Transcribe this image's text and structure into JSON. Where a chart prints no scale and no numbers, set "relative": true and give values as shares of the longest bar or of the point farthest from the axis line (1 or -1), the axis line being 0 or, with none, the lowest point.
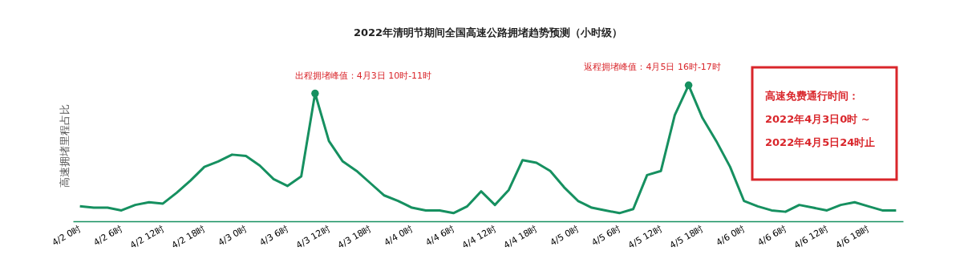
{
  "chart_data": {
    "type": "line",
    "title": "2022年清明节期间全国高速公路拥堵趋势预测（小时级）",
    "ylabel": "高速拥堵里程占比",
    "relative": true,
    "grid": false,
    "categories": [
      "4/2 0时",
      null,
      null,
      "4/2 6时",
      null,
      null,
      "4/2 12时",
      null,
      null,
      "4/2 18时",
      null,
      null,
      "4/3 0时",
      null,
      null,
      "4/3 6时",
      null,
      null,
      "4/3 12时",
      null,
      null,
      "4/3 18时",
      null,
      null,
      "4/4 0时",
      null,
      null,
      "4/4 6时",
      null,
      null,
      "4/4 12时",
      null,
      null,
      "4/4 18时",
      null,
      null,
      "4/5 0时",
      null,
      null,
      "4/5 6时",
      null,
      null,
      "4/5 12时",
      null,
      null,
      "4/5 18时",
      null,
      null,
      "4/6 0时",
      null,
      null,
      "4/6 6时",
      null,
      null,
      "4/6 12时",
      null,
      null,
      "4/6 18时",
      null,
      null
    ],
    "series": [
      {
        "color": "#169060",
        "values": [
          0.11,
          0.1,
          0.1,
          0.08,
          0.12,
          0.14,
          0.13,
          0.21,
          0.3,
          0.4,
          0.44,
          0.49,
          0.48,
          0.41,
          0.31,
          0.26,
          0.33,
          0.94,
          0.59,
          0.44,
          0.37,
          0.28,
          0.19,
          0.15,
          0.1,
          0.08,
          0.08,
          0.06,
          0.11,
          0.22,
          0.12,
          0.23,
          0.45,
          0.43,
          0.37,
          0.25,
          0.15,
          0.1,
          0.08,
          0.06,
          0.09,
          0.34,
          0.37,
          0.78,
          1.0,
          0.76,
          0.59,
          0.4,
          0.15,
          0.11,
          0.08,
          0.07,
          0.12,
          0.1,
          0.08,
          0.12,
          0.14,
          0.11,
          0.08,
          0.08
        ]
      },
      {
        "type": "scatter",
        "color": "#169060",
        "values": [
          null,
          null,
          null,
          null,
          null,
          null,
          null,
          null,
          null,
          null,
          null,
          null,
          null,
          null,
          null,
          null,
          null,
          0.94,
          null,
          null,
          null,
          null,
          null,
          null,
          null,
          null,
          null,
          null,
          null,
          null,
          null,
          null,
          null,
          null,
          null,
          null,
          null,
          null,
          null,
          null,
          null,
          null,
          null,
          null,
          1.0,
          null,
          null,
          null,
          null,
          null,
          null,
          null,
          null,
          null,
          null,
          null,
          null,
          null,
          null,
          null
        ]
      }
    ],
    "annotations": [
      "出程拥堵峰值：4月3日 10时-11时",
      "返程拥堵峰值：4月5日 16时-17时",
      "高速免费通行时间：",
      "2022年4月3日0时 ~",
      "2022年4月5日24时止"
    ]
  }
}
